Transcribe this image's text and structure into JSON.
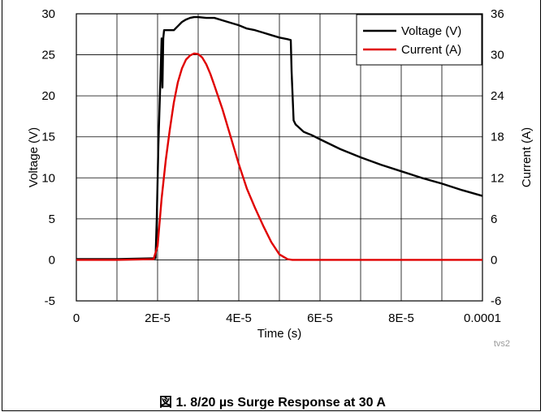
{
  "caption": "図 1. 8/20 µs Surge Response at 30 A",
  "corner_tag": "tvs2",
  "colors": {
    "voltage": "#000000",
    "current": "#e00000",
    "grid": "#000000"
  },
  "chart_data": {
    "type": "line",
    "title": "",
    "xlabel": "Time (s)",
    "ylabel": "Voltage (V)",
    "y2label": "Current (A)",
    "xlim": [
      0,
      0.0001
    ],
    "ylim": [
      -5,
      30
    ],
    "y2lim": [
      -6,
      36
    ],
    "grid": true,
    "legend_position": "top-right",
    "x_tick_labels": [
      "0",
      "2E-5",
      "4E-5",
      "6E-5",
      "8E-5",
      "0.0001"
    ],
    "y_tick_labels": [
      "-5",
      "0",
      "5",
      "10",
      "15",
      "20",
      "25",
      "30"
    ],
    "y2_tick_labels": [
      "-6",
      "0",
      "6",
      "12",
      "18",
      "24",
      "30",
      "36"
    ],
    "series": [
      {
        "name": "Voltage (V)",
        "axis": "left",
        "x": [
          0,
          1e-05,
          1.95e-05,
          1.98e-05,
          2.02e-05,
          2.07e-05,
          2.1e-05,
          2.12e-05,
          2.14e-05,
          2.16e-05,
          2.2e-05,
          2.4e-05,
          2.5e-05,
          2.6e-05,
          2.7e-05,
          2.8e-05,
          2.9e-05,
          3e-05,
          3.2e-05,
          3.4e-05,
          3.6e-05,
          3.8e-05,
          4e-05,
          4.2e-05,
          4.4e-05,
          4.6e-05,
          4.8e-05,
          5e-05,
          5.2e-05,
          5.28e-05,
          5.3e-05,
          5.35e-05,
          5.4e-05,
          5.6e-05,
          5.8e-05,
          6e-05,
          6.5e-05,
          7e-05,
          7.5e-05,
          8e-05,
          8.5e-05,
          9e-05,
          9.5e-05,
          0.0001
        ],
        "values": [
          0.1,
          0.1,
          0.2,
          5,
          14,
          22,
          27,
          21,
          27,
          28,
          28,
          28,
          28.5,
          29,
          29.3,
          29.5,
          29.6,
          29.6,
          29.5,
          29.5,
          29.2,
          28.9,
          28.6,
          28.2,
          28,
          27.7,
          27.4,
          27.1,
          26.9,
          26.8,
          23,
          17,
          16.5,
          15.6,
          15.2,
          14.7,
          13.5,
          12.5,
          11.6,
          10.8,
          10,
          9.3,
          8.5,
          7.8
        ]
      },
      {
        "name": "Current (A)",
        "axis": "right",
        "x": [
          0,
          1e-05,
          1.9e-05,
          2e-05,
          2.1e-05,
          2.2e-05,
          2.3e-05,
          2.4e-05,
          2.5e-05,
          2.6e-05,
          2.7e-05,
          2.8e-05,
          2.9e-05,
          3e-05,
          3.1e-05,
          3.2e-05,
          3.3e-05,
          3.4e-05,
          3.6e-05,
          3.8e-05,
          4e-05,
          4.2e-05,
          4.4e-05,
          4.6e-05,
          4.8e-05,
          5e-05,
          5.2e-05,
          5.32e-05,
          5.4e-05,
          6e-05,
          7e-05,
          8e-05,
          9e-05,
          0.0001
        ],
        "values": [
          0,
          0,
          0.1,
          2,
          9,
          14.5,
          19,
          23,
          26,
          28,
          29.3,
          29.9,
          30.2,
          30.1,
          29.6,
          28.6,
          27.2,
          25.5,
          22,
          18,
          14,
          10.4,
          7.6,
          5,
          2.6,
          0.8,
          0.1,
          0,
          0,
          0,
          0,
          0,
          0,
          0
        ]
      }
    ]
  }
}
